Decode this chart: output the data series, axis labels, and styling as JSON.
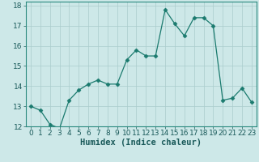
{
  "x": [
    0,
    1,
    2,
    3,
    4,
    5,
    6,
    7,
    8,
    9,
    10,
    11,
    12,
    13,
    14,
    15,
    16,
    17,
    18,
    19,
    20,
    21,
    22,
    23
  ],
  "y": [
    13.0,
    12.8,
    12.1,
    11.9,
    13.3,
    13.8,
    14.1,
    14.3,
    14.1,
    14.1,
    15.3,
    15.8,
    15.5,
    15.5,
    17.8,
    17.1,
    16.5,
    17.4,
    17.4,
    17.0,
    13.3,
    13.4,
    13.9,
    13.2
  ],
  "line_color": "#1a7a6e",
  "marker": "D",
  "marker_size": 2.5,
  "bg_color": "#cde8e8",
  "grid_color": "#aacccc",
  "xlabel": "Humidex (Indice chaleur)",
  "xlim": [
    -0.5,
    23.5
  ],
  "ylim": [
    12,
    18.2
  ],
  "xticks": [
    0,
    1,
    2,
    3,
    4,
    5,
    6,
    7,
    8,
    9,
    10,
    11,
    12,
    13,
    14,
    15,
    16,
    17,
    18,
    19,
    20,
    21,
    22,
    23
  ],
  "yticks": [
    12,
    13,
    14,
    15,
    16,
    17,
    18
  ],
  "tick_labelsize": 6.5,
  "xlabel_fontsize": 7.5,
  "spine_color": "#2a8a7e"
}
